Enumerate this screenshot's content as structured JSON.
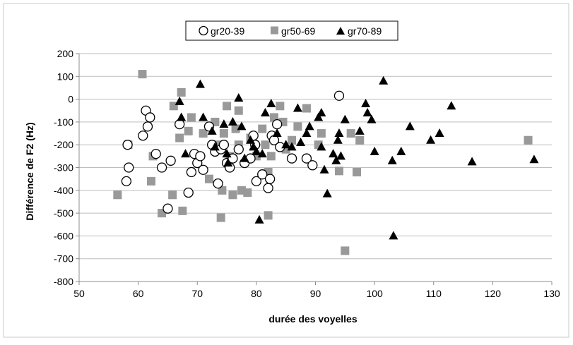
{
  "chart_data": {
    "type": "scatter",
    "xlabel": "durée des voyelles",
    "ylabel": "Différence de F2 (Hz)",
    "xlim": [
      50,
      130
    ],
    "ylim": [
      -800,
      200
    ],
    "xticks": [
      "50",
      "60",
      "70",
      "80",
      "90",
      "100",
      "110",
      "120",
      "130"
    ],
    "yticks": [
      "200",
      "100",
      "0",
      "-100",
      "-200",
      "-300",
      "-400",
      "-500",
      "-600",
      "-700",
      "-800"
    ],
    "grid": "horizontal",
    "legend_position": "top-center",
    "series": [
      {
        "name": "gr20-39",
        "marker": "circle-open",
        "color": "#000000",
        "points": [
          [
            58,
            -360
          ],
          [
            58.2,
            -200
          ],
          [
            58.4,
            -300
          ],
          [
            60.8,
            -160
          ],
          [
            61.3,
            -50
          ],
          [
            61.6,
            -120
          ],
          [
            62,
            -80
          ],
          [
            63,
            -240
          ],
          [
            64,
            -300
          ],
          [
            65,
            -480
          ],
          [
            65.5,
            -270
          ],
          [
            67,
            -110
          ],
          [
            68.5,
            -410
          ],
          [
            69,
            -320
          ],
          [
            69.5,
            -240
          ],
          [
            70,
            -280
          ],
          [
            70.5,
            -250
          ],
          [
            71,
            -310
          ],
          [
            72,
            -120
          ],
          [
            72.5,
            -200
          ],
          [
            73,
            -230
          ],
          [
            73.5,
            -370
          ],
          [
            74,
            -220
          ],
          [
            74.5,
            -200
          ],
          [
            75,
            -280
          ],
          [
            75.5,
            -300
          ],
          [
            76,
            -260
          ],
          [
            77,
            -220
          ],
          [
            78,
            -280
          ],
          [
            79,
            -260
          ],
          [
            79.5,
            -160
          ],
          [
            79.8,
            -200
          ],
          [
            80,
            -360
          ],
          [
            81,
            -330
          ],
          [
            82,
            -390
          ],
          [
            82.3,
            -350
          ],
          [
            82.6,
            -160
          ],
          [
            83,
            -180
          ],
          [
            83.5,
            -110
          ],
          [
            84,
            -210
          ],
          [
            86,
            -260
          ],
          [
            88.5,
            -260
          ],
          [
            89.5,
            -290
          ],
          [
            94,
            15
          ]
        ]
      },
      {
        "name": "gr50-69",
        "marker": "square",
        "color": "#999999",
        "points": [
          [
            56.5,
            -420
          ],
          [
            58.3,
            -200
          ],
          [
            60.7,
            110
          ],
          [
            62.2,
            -360
          ],
          [
            62.5,
            -250
          ],
          [
            64,
            -500
          ],
          [
            65.8,
            -420
          ],
          [
            66,
            -30
          ],
          [
            67,
            -170
          ],
          [
            67.3,
            30
          ],
          [
            67.5,
            -490
          ],
          [
            68.5,
            -140
          ],
          [
            69,
            -80
          ],
          [
            71,
            -150
          ],
          [
            72,
            -350
          ],
          [
            73,
            -100
          ],
          [
            73.5,
            -200
          ],
          [
            74,
            -520
          ],
          [
            74.2,
            -400
          ],
          [
            74.5,
            -150
          ],
          [
            75,
            -30
          ],
          [
            75.5,
            -250
          ],
          [
            76,
            -420
          ],
          [
            76.5,
            -130
          ],
          [
            77,
            -50
          ],
          [
            77,
            -200
          ],
          [
            77.5,
            -400
          ],
          [
            78.5,
            -410
          ],
          [
            79,
            -170
          ],
          [
            80,
            -250
          ],
          [
            81,
            -130
          ],
          [
            81.5,
            -200
          ],
          [
            82,
            -320
          ],
          [
            82,
            -510
          ],
          [
            82.5,
            -250
          ],
          [
            83,
            -80
          ],
          [
            84,
            -30
          ],
          [
            84.5,
            -100
          ],
          [
            85,
            -220
          ],
          [
            86,
            -180
          ],
          [
            87,
            -120
          ],
          [
            88.5,
            -40
          ],
          [
            90.5,
            -200
          ],
          [
            91,
            -150
          ],
          [
            94,
            -315
          ],
          [
            95,
            -665
          ],
          [
            96,
            -150
          ],
          [
            97,
            -320
          ],
          [
            97.5,
            -180
          ],
          [
            126,
            -180
          ]
        ]
      },
      {
        "name": "gr70-89",
        "marker": "triangle",
        "color": "#000000",
        "points": [
          [
            67,
            -10
          ],
          [
            67.3,
            -80
          ],
          [
            68,
            -240
          ],
          [
            70.5,
            65
          ],
          [
            71,
            -80
          ],
          [
            72.5,
            -140
          ],
          [
            73,
            -210
          ],
          [
            74.5,
            -110
          ],
          [
            75,
            -240
          ],
          [
            75.2,
            -280
          ],
          [
            76,
            -100
          ],
          [
            77,
            5
          ],
          [
            77.5,
            -120
          ],
          [
            78,
            -260
          ],
          [
            79,
            -180
          ],
          [
            79.5,
            -210
          ],
          [
            80,
            -230
          ],
          [
            80.5,
            -530
          ],
          [
            81,
            -240
          ],
          [
            81.5,
            -60
          ],
          [
            82.5,
            -20
          ],
          [
            83.5,
            -150
          ],
          [
            85,
            -200
          ],
          [
            86,
            -210
          ],
          [
            87,
            -40
          ],
          [
            87.5,
            -190
          ],
          [
            88.5,
            -150
          ],
          [
            89,
            -120
          ],
          [
            90.5,
            -80
          ],
          [
            91,
            -60
          ],
          [
            91,
            -210
          ],
          [
            91.5,
            -310
          ],
          [
            92,
            -415
          ],
          [
            93,
            -240
          ],
          [
            93.5,
            -270
          ],
          [
            93.8,
            -180
          ],
          [
            94,
            -150
          ],
          [
            94.3,
            -250
          ],
          [
            95,
            -90
          ],
          [
            97.5,
            -140
          ],
          [
            98.5,
            -20
          ],
          [
            98.8,
            -60
          ],
          [
            99.5,
            -90
          ],
          [
            100,
            -230
          ],
          [
            101.5,
            80
          ],
          [
            103,
            -270
          ],
          [
            103.2,
            -600
          ],
          [
            104.5,
            -230
          ],
          [
            106,
            -120
          ],
          [
            109.5,
            -180
          ],
          [
            111,
            -150
          ],
          [
            113,
            -30
          ],
          [
            116.5,
            -275
          ],
          [
            127,
            -265
          ]
        ]
      }
    ]
  }
}
